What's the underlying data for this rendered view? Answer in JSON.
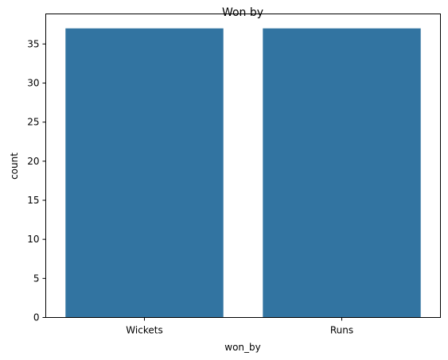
{
  "chart_data": {
    "type": "bar",
    "title": "Won by",
    "xlabel": "won_by",
    "ylabel": "count",
    "categories": [
      "Wickets",
      "Runs"
    ],
    "values": [
      37,
      37
    ],
    "ylim": [
      0,
      38.85
    ],
    "yticks": [
      0,
      5,
      10,
      15,
      20,
      25,
      30,
      35
    ],
    "grid": false,
    "bar_color": "#3274a1"
  }
}
